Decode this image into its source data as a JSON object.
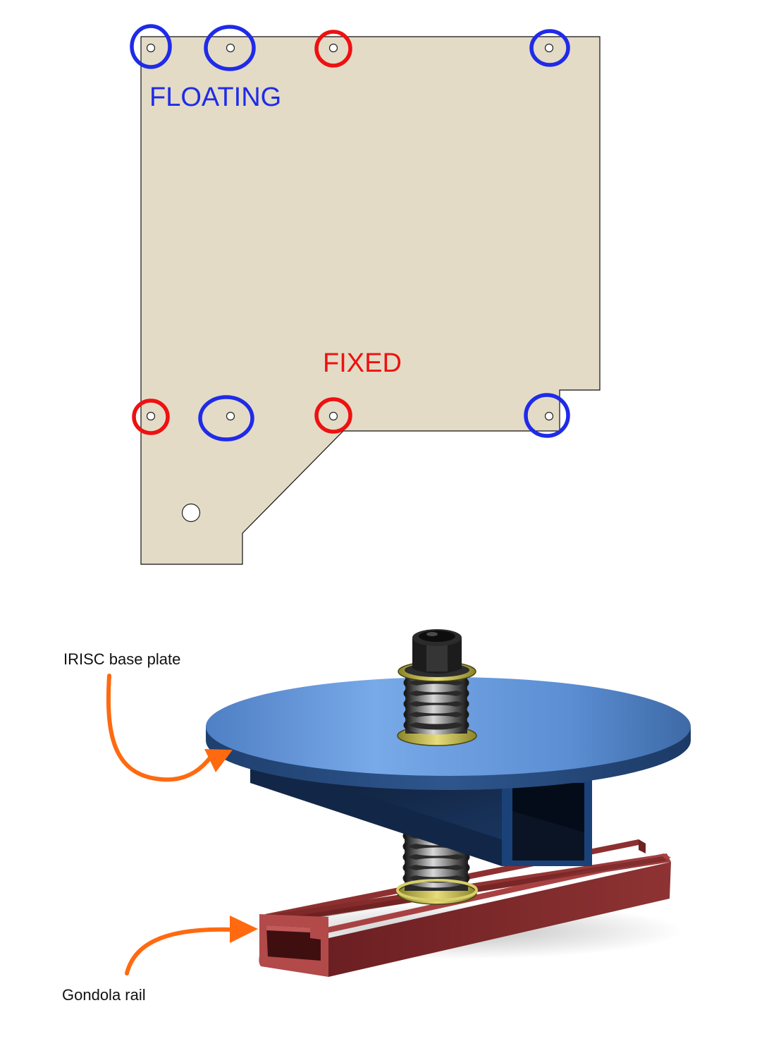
{
  "top_diagram": {
    "floating_label": "FLOATING",
    "fixed_label": "FIXED",
    "colors": {
      "plate_fill": "#e3dbc6",
      "floating": "#1f2be8",
      "fixed": "#ee1111"
    }
  },
  "bottom_render": {
    "base_plate_label": "IRISC base plate",
    "rail_label": "Gondola rail",
    "colors": {
      "arrow": "#ff6a10",
      "base_plate": "#5a8fd6",
      "rail": "#8a2c2c"
    }
  }
}
